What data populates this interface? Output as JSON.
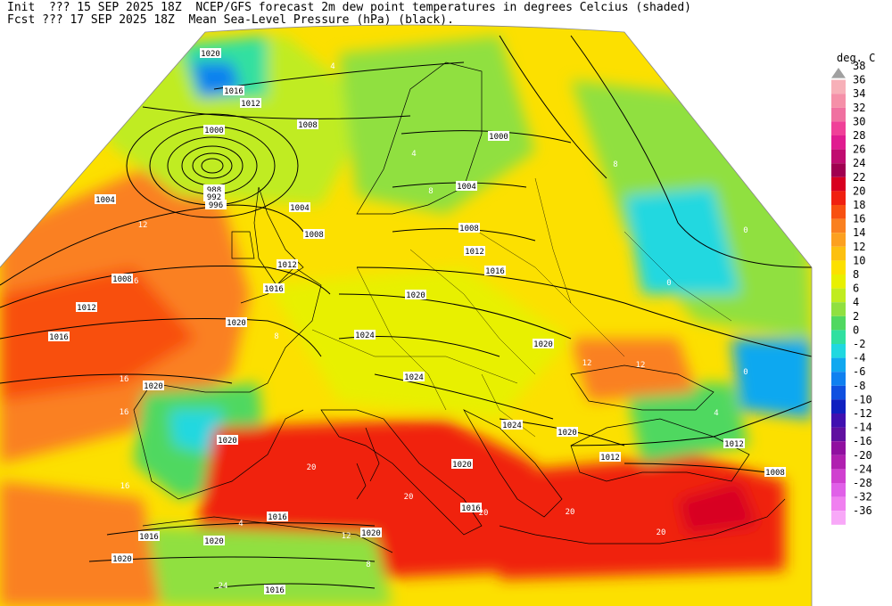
{
  "header": {
    "line1": "Init  ??? 15 SEP 2025 18Z  NCEP/GFS forecast 2m dew point temperatures in degrees Celcius (shaded)",
    "line2": "Fcst ??? 17 SEP 2025 18Z  Mean Sea-Level Pressure (hPa) (black)."
  },
  "legend": {
    "unit": "deg. C",
    "levels": [
      {
        "label": "38",
        "color": "#a0a0a0"
      },
      {
        "label": "36",
        "color": "#f7b0b8"
      },
      {
        "label": "34",
        "color": "#f590a8"
      },
      {
        "label": "32",
        "color": "#f070a0"
      },
      {
        "label": "30",
        "color": "#f04098"
      },
      {
        "label": "28",
        "color": "#e01c90"
      },
      {
        "label": "26",
        "color": "#c00c70"
      },
      {
        "label": "24",
        "color": "#a00050"
      },
      {
        "label": "22",
        "color": "#d80020"
      },
      {
        "label": "20",
        "color": "#f02010"
      },
      {
        "label": "18",
        "color": "#f85010"
      },
      {
        "label": "16",
        "color": "#fa8020"
      },
      {
        "label": "14",
        "color": "#fca020"
      },
      {
        "label": "12",
        "color": "#fcc010"
      },
      {
        "label": "10",
        "color": "#fce000"
      },
      {
        "label": "8",
        "color": "#e8f000"
      },
      {
        "label": "6",
        "color": "#c0ec20"
      },
      {
        "label": "4",
        "color": "#90e040"
      },
      {
        "label": "2",
        "color": "#50d860"
      },
      {
        "label": "0",
        "color": "#30e0a0"
      },
      {
        "label": "-2",
        "color": "#20d8e0"
      },
      {
        "label": "-4",
        "color": "#10a8f0"
      },
      {
        "label": "-6",
        "color": "#1080f0"
      },
      {
        "label": "-8",
        "color": "#1050e0"
      },
      {
        "label": "-10",
        "color": "#1020c0"
      },
      {
        "label": "-12",
        "color": "#4010b0"
      },
      {
        "label": "-14",
        "color": "#6010a0"
      },
      {
        "label": "-16",
        "color": "#9010a0"
      },
      {
        "label": "-20",
        "color": "#b020b0"
      },
      {
        "label": "-24",
        "color": "#d040d0"
      },
      {
        "label": "-28",
        "color": "#e060e8"
      },
      {
        "label": "-32",
        "color": "#f080f0"
      },
      {
        "label": "-36",
        "color": "#f8a8f8"
      }
    ]
  },
  "isobar_labels": [
    "1020",
    "1016",
    "1012",
    "1008",
    "1000",
    "988",
    "992",
    "996",
    "1004",
    "1004",
    "1008",
    "1012",
    "1016",
    "1000",
    "1004",
    "1008",
    "1012",
    "1016",
    "1020",
    "1024",
    "1024",
    "1020",
    "1020",
    "1024",
    "1020",
    "1016",
    "1012",
    "1012",
    "1008",
    "1020",
    "1020",
    "1016",
    "1020",
    "1020",
    "1016",
    "1020",
    "1016",
    "1008",
    "1012",
    "1016",
    "1020"
  ],
  "dew_labels": [
    "4",
    "8",
    "4",
    "0",
    "8",
    "12",
    "12",
    "16",
    "16",
    "16",
    "12",
    "8",
    "4",
    "0",
    "20",
    "20",
    "20",
    "16",
    "12",
    "8",
    "4",
    "0",
    "20",
    "24",
    "20"
  ],
  "colors": {
    "background": "#ffffff",
    "isobar": "#000000",
    "border": "#000000"
  }
}
